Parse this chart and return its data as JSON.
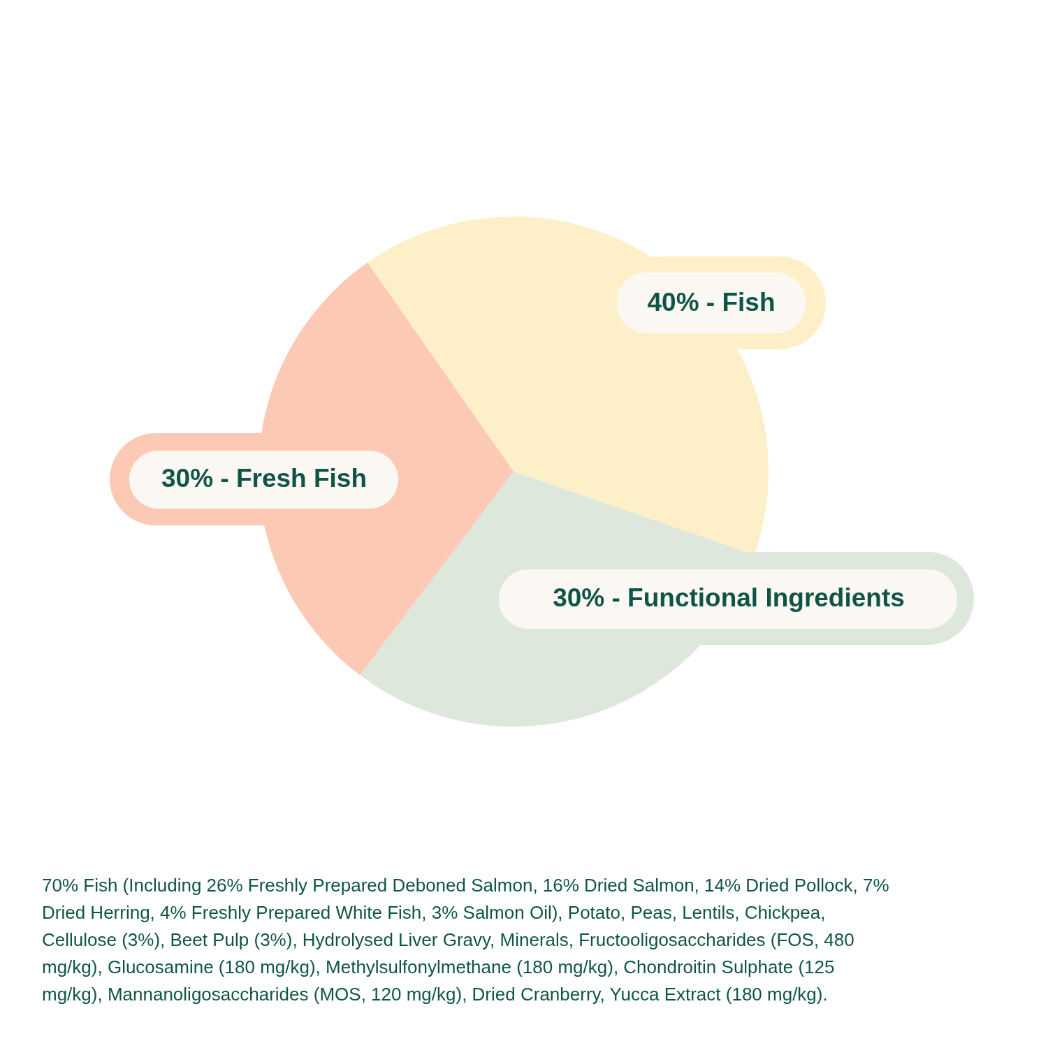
{
  "chart_data": {
    "type": "pie",
    "categories": [
      "40% - Fish",
      "30% - Functional Ingredients",
      "30% - Fresh Fish"
    ],
    "values": [
      40,
      30,
      30
    ],
    "colors": [
      "#fdf0c8",
      "#dee7dc",
      "#fcc9b5"
    ],
    "annotations": [
      "70% Fish (Including 26% Freshly Prepared Deboned Salmon, 16% Dried Salmon, 14% Dried Pollock, 7% Dried Herring, 4% Freshly Prepared White Fish, 3% Salmon Oil), Potato, Peas, Lentils, Chickpea, Cellulose (3%), Beet Pulp (3%), Hydrolysed Liver Gravy, Minerals, Fructooligosaccharides (FOS, 480 mg/kg), Glucosamine (180 mg/kg), Methylsulfonylmethane (180 mg/kg), Chondroitin Sulphate (125 mg/kg), Mannanoligosaccharides (MOS, 120 mg/kg), Dried Cranberry, Yucca Extract (180 mg/kg)."
    ]
  }
}
